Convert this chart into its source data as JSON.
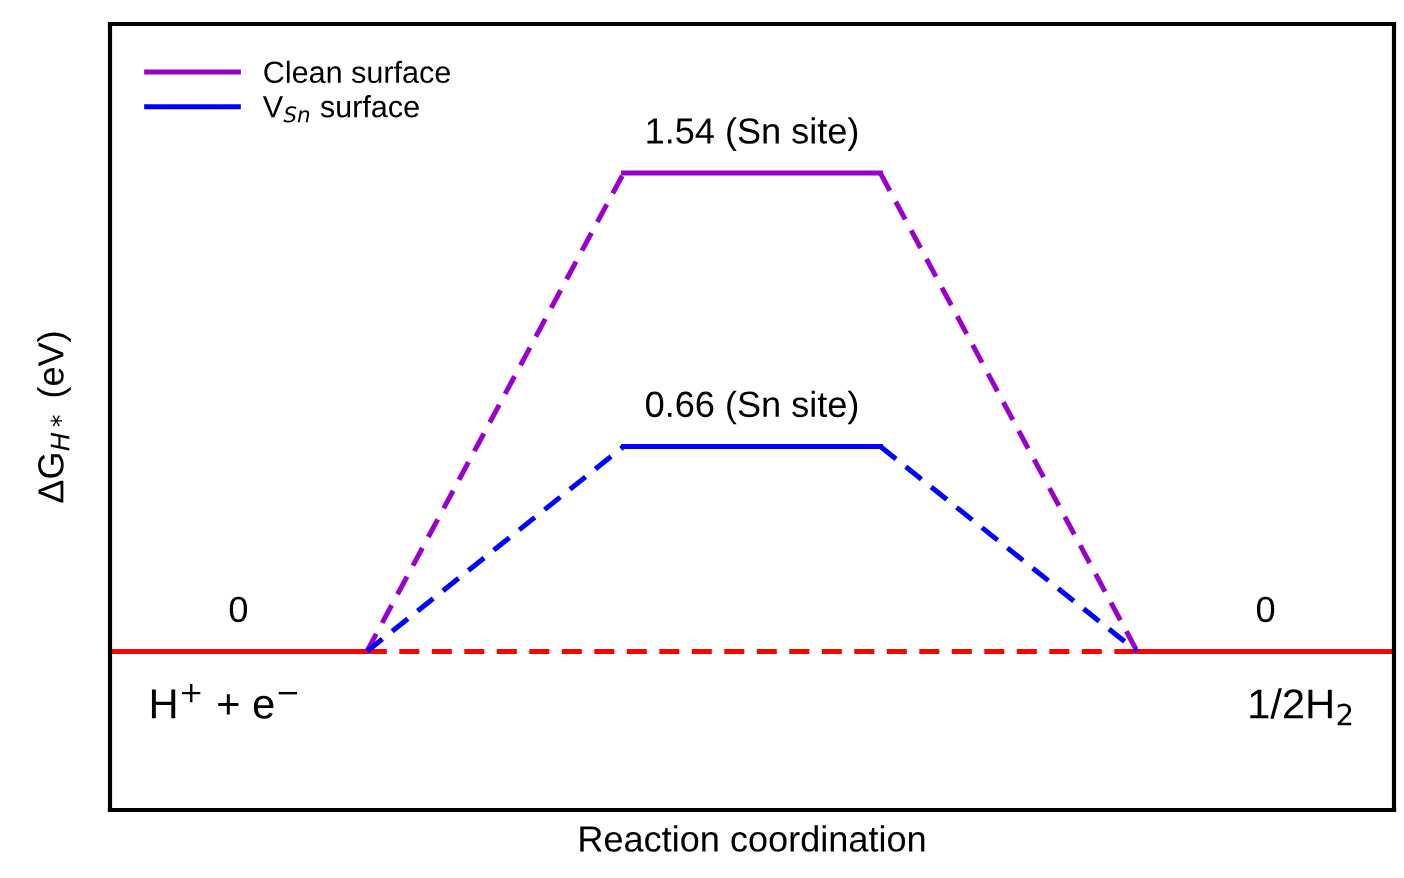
{
  "chart_data": {
    "type": "line",
    "xlabel": "Reaction coordination",
    "ylabel": "ΔG$_{H*}$ (eV)",
    "categories": [
      null,
      null,
      null,
      null,
      null,
      null,
      null,
      null,
      null,
      null,
      null
    ],
    "ylim": [
      -0.51,
      2.02
    ],
    "legend": "top left",
    "series": [
      {
        "values": [
          0,
          0,
          0,
          null,
          null,
          null,
          null,
          null,
          null,
          null,
          null
        ],
        "value_labels": [
          null,
          "0",
          null,
          null,
          null,
          null,
          null,
          null,
          null,
          null,
          null
        ],
        "color": "#ff0000",
        "line_style": "solid"
      },
      {
        "values": [
          null,
          null,
          0,
          0,
          0,
          0,
          0,
          0,
          0,
          null,
          null
        ],
        "color": "#ff0000",
        "line_style": "dashed"
      },
      {
        "values": [
          null,
          null,
          null,
          null,
          null,
          null,
          null,
          null,
          0,
          0,
          0
        ],
        "value_labels": [
          null,
          null,
          null,
          null,
          null,
          null,
          null,
          null,
          null,
          "0",
          null
        ],
        "color": "#ff0000",
        "line_style": "solid"
      },
      {
        "values": [
          null,
          null,
          0,
          0.77,
          1.54,
          null,
          null,
          null,
          null,
          null,
          null
        ],
        "color": "#9900cc",
        "line_style": "dashed"
      },
      {
        "name": "Clean surface",
        "values": [
          null,
          null,
          null,
          null,
          1.54,
          1.54,
          1.54,
          null,
          null,
          null,
          null
        ],
        "value_labels": [
          null,
          null,
          null,
          null,
          null,
          "1.54 (Sn site)",
          null,
          null,
          null,
          null,
          null
        ],
        "color": "#9900cc",
        "line_style": "solid"
      },
      {
        "values": [
          null,
          null,
          null,
          null,
          null,
          null,
          1.54,
          0.77,
          0,
          null,
          null
        ],
        "color": "#9900cc",
        "line_style": "dashed"
      },
      {
        "values": [
          null,
          null,
          0,
          0.33,
          0.66,
          null,
          null,
          null,
          null,
          null,
          null
        ],
        "color": "#0000ff",
        "line_style": "dashed"
      },
      {
        "name": "V$_{Sn}$ surface",
        "values": [
          null,
          null,
          null,
          null,
          0.66,
          0.66,
          0.66,
          null,
          null,
          null,
          null
        ],
        "value_labels": [
          null,
          null,
          null,
          null,
          null,
          "0.66 (Sn site)",
          null,
          null,
          null,
          null,
          null
        ],
        "color": "#0000ff",
        "line_style": "solid"
      },
      {
        "values": [
          null,
          null,
          null,
          null,
          null,
          null,
          0.66,
          0.33,
          0,
          null,
          null
        ],
        "color": "#0000ff",
        "line_style": "dashed"
      }
    ],
    "annotations": [
      "H$^{+}$ + e$^{−}$",
      "1/2H$_{2}$"
    ]
  }
}
